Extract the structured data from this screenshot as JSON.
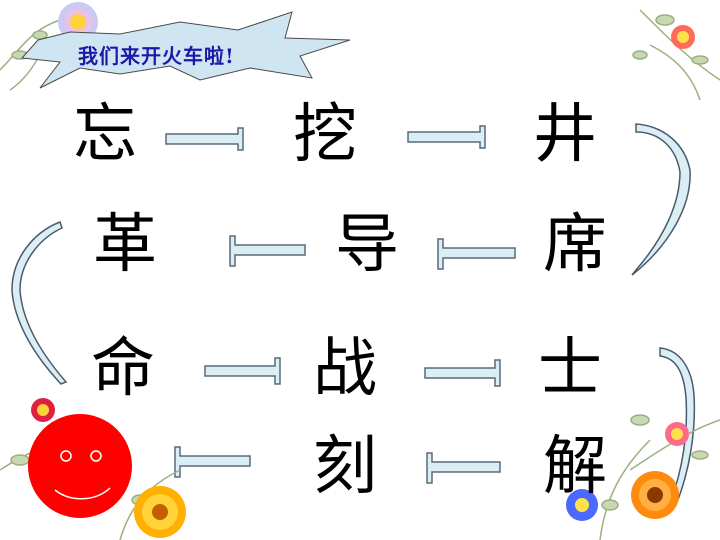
{
  "banner": {
    "text": "我们来开火车啦!"
  },
  "chars": {
    "r1c1": "忘",
    "r1c2": "挖",
    "r1c3": "井",
    "r2c1": "革",
    "r2c2": "导",
    "r2c3": "席",
    "r3c1": "命",
    "r3c2": "战",
    "r3c3": "士",
    "r4c2": "刻",
    "r4c3": "解"
  },
  "colors": {
    "arrow_fill": "#dbeef5",
    "arrow_stroke": "#5a6a7a",
    "banner_fill": "#cfe6f2",
    "banner_text": "#1a1aa8",
    "smiley": "#ff0000",
    "flower_orange": "#ff8a10",
    "flower_red": "#e02040"
  },
  "icons": [
    "flower-icon",
    "smiley-face-icon",
    "arrow-right-icon",
    "arrow-left-icon",
    "curved-connector-icon"
  ]
}
